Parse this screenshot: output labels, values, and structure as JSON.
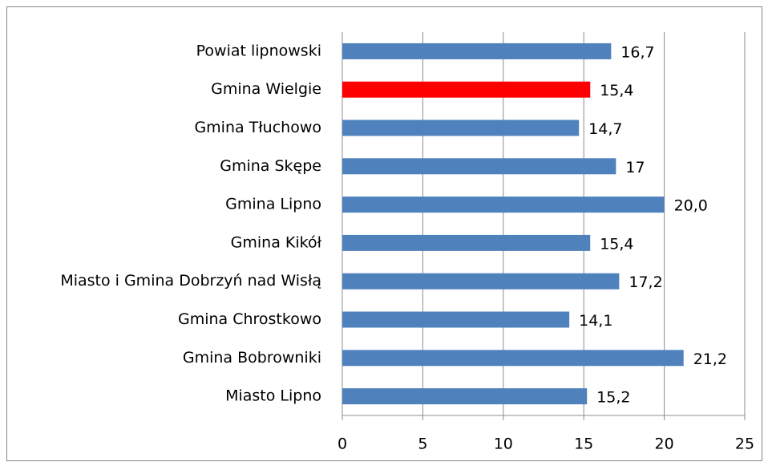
{
  "chart_data": {
    "type": "bar",
    "orientation": "horizontal",
    "categories": [
      "Powiat lipnowski",
      "Gmina Wielgie",
      "Gmina Tłuchowo",
      "Gmina Skępe",
      "Gmina Lipno",
      "Gmina Kikół",
      "Miasto i Gmina Dobrzyń nad Wisłą",
      "Gmina Chrostkowo",
      "Gmina Bobrowniki",
      "Miasto Lipno"
    ],
    "values": [
      16.7,
      15.4,
      14.7,
      17,
      20.0,
      15.4,
      17.2,
      14.1,
      21.2,
      15.2
    ],
    "value_labels": [
      "16,7",
      "15,4",
      "14,7",
      "17",
      "20,0",
      "15,4",
      "17,2",
      "14,1",
      "21,2",
      "15,2"
    ],
    "colors": [
      "#4f81bd",
      "#ff0000",
      "#4f81bd",
      "#4f81bd",
      "#4f81bd",
      "#4f81bd",
      "#4f81bd",
      "#4f81bd",
      "#4f81bd",
      "#4f81bd"
    ],
    "xlim": [
      0,
      25
    ],
    "xticks": [
      0,
      5,
      10,
      15,
      20,
      25
    ],
    "grid": true
  }
}
